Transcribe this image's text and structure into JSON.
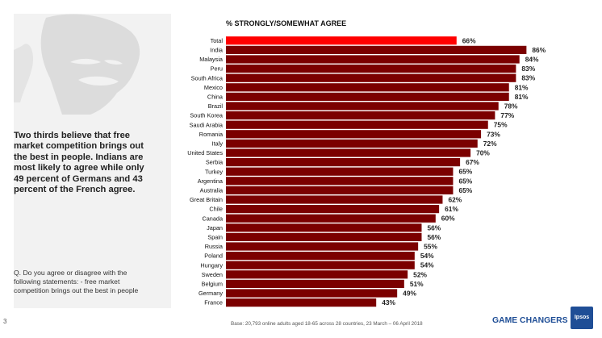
{
  "page": {
    "number": "3"
  },
  "left_panel": {
    "key_finding": "Two thirds believe that free market competition brings out the best in people. Indians are most likely to agree while only 49 percent of Germans and 43 percent of the French agree.",
    "question": "Q. Do you agree or disagree with the following statements: - free market competition brings out the best in people"
  },
  "footer": {
    "base": "Base: 20,793 online adults aged 18-65 across 28 countries,  23 March – 06 April 2018",
    "brand": "GAME CHANGERS",
    "logo_text": "Ipsos"
  },
  "colors": {
    "total_bar": "#ff0000",
    "country_bar": "#7b0000",
    "brand": "#1f4e96"
  },
  "chart_data": {
    "type": "bar",
    "orientation": "horizontal",
    "title": "% STRONGLY/SOMEWHAT AGREE",
    "categories": [
      "Total",
      "India",
      "Malaysia",
      "Peru",
      "South Africa",
      "Mexico",
      "China",
      "Brazil",
      "South Korea",
      "Saudi Arabia",
      "Romania",
      "Italy",
      "United States",
      "Serbia",
      "Turkey",
      "Argentina",
      "Australia",
      "Great Britain",
      "Chile",
      "Canada",
      "Japan",
      "Spain",
      "Russia",
      "Poland",
      "Hungary",
      "Sweden",
      "Belgium",
      "Germany",
      "France"
    ],
    "values": [
      66,
      86,
      84,
      83,
      83,
      81,
      81,
      78,
      77,
      75,
      73,
      72,
      70,
      67,
      65,
      65,
      65,
      62,
      61,
      60,
      56,
      56,
      55,
      54,
      54,
      52,
      51,
      49,
      43
    ],
    "value_labels": [
      "66%",
      "86%",
      "84%",
      "83%",
      "83%",
      "81%",
      "81%",
      "78%",
      "77%",
      "75%",
      "73%",
      "72%",
      "70%",
      "67%",
      "65%",
      "65%",
      "65%",
      "62%",
      "61%",
      "60%",
      "56%",
      "56%",
      "55%",
      "54%",
      "54%",
      "52%",
      "51%",
      "49%",
      "43%"
    ],
    "highlight_category": "Total",
    "xlim": [
      0,
      100
    ],
    "grid": false,
    "legend": "none"
  }
}
